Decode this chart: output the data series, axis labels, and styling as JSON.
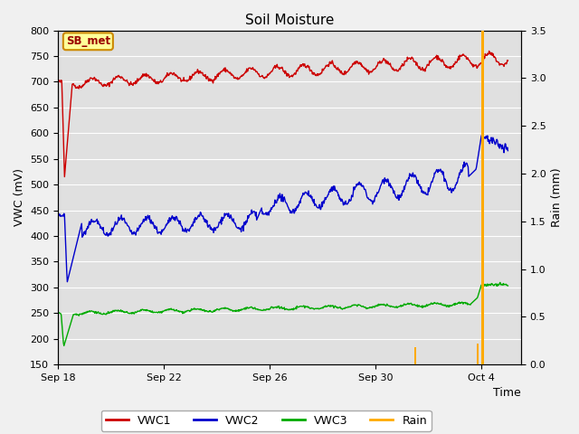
{
  "title": "Soil Moisture",
  "xlabel": "Time",
  "ylabel_left": "VWC (mV)",
  "ylabel_right": "Rain (mm)",
  "ylim_left": [
    150,
    800
  ],
  "ylim_right": [
    0.0,
    3.5
  ],
  "yticks_left": [
    150,
    200,
    250,
    300,
    350,
    400,
    450,
    500,
    550,
    600,
    650,
    700,
    750,
    800
  ],
  "yticks_right": [
    0.0,
    0.5,
    1.0,
    1.5,
    2.0,
    2.5,
    3.0,
    3.5
  ],
  "xtick_positions": [
    0,
    4,
    8,
    12,
    16
  ],
  "xtick_labels": [
    "Sep 18",
    "Sep 22",
    "Sep 26",
    "Sep 30",
    "Oct 4"
  ],
  "xlim": [
    0,
    17.5
  ],
  "fig_bg_color": "#f0f0f0",
  "plot_bg_color": "#e0e0e0",
  "vwc1_color": "#cc0000",
  "vwc2_color": "#0000cc",
  "vwc3_color": "#00aa00",
  "rain_color": "#ffaa00",
  "grid_color": "#ffffff",
  "annotation_label": "SB_met",
  "annotation_box_color": "#ffff99",
  "annotation_border_color": "#cc8800",
  "annotation_text_color": "#990000",
  "legend_labels": [
    "VWC1",
    "VWC2",
    "VWC3",
    "Rain"
  ],
  "rain_events": [
    {
      "time": 13.5,
      "value": 0.18
    },
    {
      "time": 15.85,
      "value": 0.22
    },
    {
      "time": 16.05,
      "value": 3.5
    }
  ]
}
